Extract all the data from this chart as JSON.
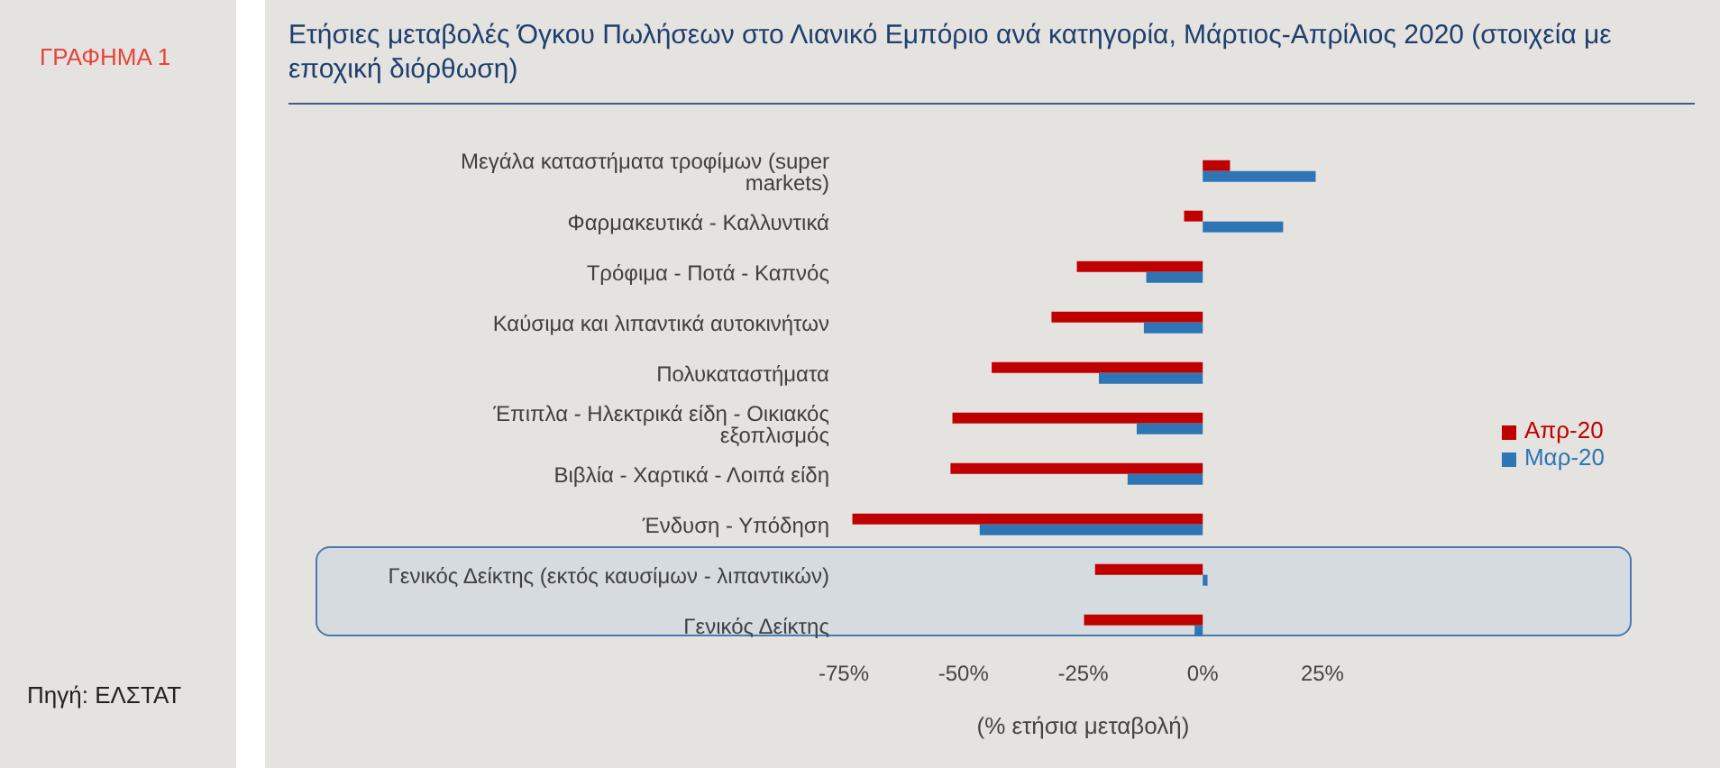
{
  "chart_data": {
    "type": "bar",
    "orientation": "horizontal",
    "title": "Ετήσιες μεταβολές Όγκου Πωλήσεων στο Λιανικό Εμπόριο ανά κατηγορία, Μάρτιος-Απρίλιος 2020 (στοιχεία με εποχική διόρθωση)",
    "xlabel": "(% ετήσια μεταβολή)",
    "annotations": [
      "ΓΡΑΦΗΜΑ 1",
      "Πηγή: ΕΛΣΤΑΤ"
    ],
    "categories": [
      "Μεγάλα καταστήματα τροφίμων (super markets)",
      "Φαρμακευτικά - Καλλυντικά",
      "Τρόφιμα - Ποτά - Καπνός",
      "Καύσιμα και λιπαντικά αυτοκινήτων",
      "Πολυκαταστήματα",
      "Έπιπλα - Ηλεκτρικά είδη - Οικιακός εξοπλισμός",
      "Βιβλία - Χαρτικά - Λοιπά είδη",
      "Ένδυση - Υπόδηση",
      "Γενικός Δείκτης (εκτός καυσίμων - λιπαντικών)",
      "Γενικός Δείκτης"
    ],
    "series": [
      {
        "name": "Απρ-20",
        "color": "#c00000",
        "values": [
          5.7,
          -3.9,
          -26.3,
          -31.6,
          -44.1,
          -52.3,
          -52.7,
          -73.2,
          -22.5,
          -24.8
        ]
      },
      {
        "name": "Μαρ-20",
        "color": "#2e75b6",
        "values": [
          23.6,
          16.8,
          -11.8,
          -12.3,
          -21.7,
          -13.8,
          -15.7,
          -46.6,
          1.0,
          -1.7
        ]
      }
    ],
    "xlim": [
      -75,
      25
    ],
    "xticks": [
      {
        "value": -75,
        "label": "-75%"
      },
      {
        "value": -50,
        "label": "-50%"
      },
      {
        "value": -25,
        "label": "-25%"
      },
      {
        "value": 0,
        "label": "0%"
      },
      {
        "value": 25,
        "label": "25%"
      }
    ],
    "grid": false,
    "legend": "right"
  }
}
